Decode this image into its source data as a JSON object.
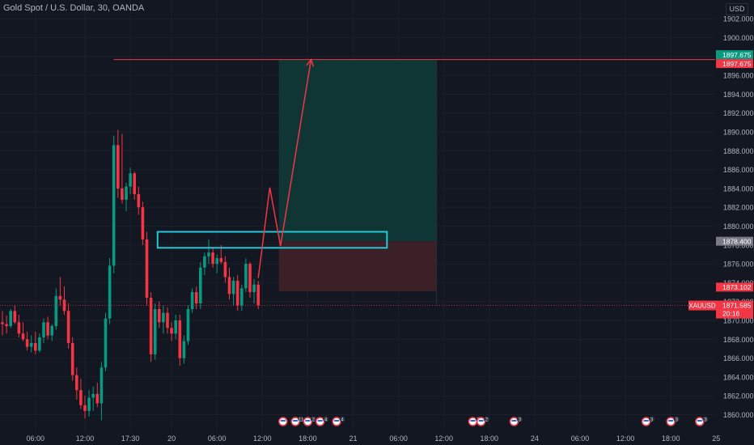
{
  "header": {
    "title": "Gold Spot / U.S. Dollar, 30, OANDA",
    "currency": "USD"
  },
  "price_axis": {
    "ticks": [
      "1902.000",
      "1900.000",
      "1898.000",
      "1896.000",
      "1894.000",
      "1892.000",
      "1890.000",
      "1888.000",
      "1886.000",
      "1884.000",
      "1882.000",
      "1880.000",
      "1878.000",
      "1876.000",
      "1874.000",
      "1872.000",
      "1870.000",
      "1868.000",
      "1866.000",
      "1864.000",
      "1862.000",
      "1860.000"
    ],
    "labels": [
      {
        "name": "target-price-label-upper",
        "text": "1897.675",
        "value": 1897.675,
        "color": "#089981"
      },
      {
        "name": "target-price-label-lower",
        "text": "1897.675",
        "value": 1897.675,
        "color": "#f23645"
      },
      {
        "name": "entry-price-label",
        "text": "1878.400",
        "value": 1878.4,
        "color": "#787b86"
      },
      {
        "name": "stop-price-label",
        "text": "1873.102",
        "value": 1873.102,
        "color": "#f23645"
      },
      {
        "name": "current-price-label",
        "symbol": "XAUUSD",
        "text": "1871.585",
        "countdown": "20:16",
        "value": 1871.585,
        "color": "#f23645"
      }
    ]
  },
  "time_axis": {
    "ticks": [
      {
        "label": "06:00",
        "bar": 8
      },
      {
        "label": "12:00",
        "bar": 20
      },
      {
        "label": "17:30",
        "bar": 31
      },
      {
        "label": "20",
        "bar": 41
      },
      {
        "label": "06:00",
        "bar": 52
      },
      {
        "label": "12:00",
        "bar": 63
      },
      {
        "label": "18:00",
        "bar": 74
      },
      {
        "label": "21",
        "bar": 85
      },
      {
        "label": "06:00",
        "bar": 96
      },
      {
        "label": "12:00",
        "bar": 107
      },
      {
        "label": "18:00",
        "bar": 118
      },
      {
        "label": "24",
        "bar": 129
      },
      {
        "label": "06:00",
        "bar": 140
      },
      {
        "label": "12:00",
        "bar": 151
      },
      {
        "label": "18:00",
        "bar": 162
      },
      {
        "label": "25",
        "bar": 173
      }
    ]
  },
  "events": [
    {
      "bar": 68,
      "count": ""
    },
    {
      "bar": 71,
      "count": "11"
    },
    {
      "bar": 74,
      "count": "2"
    },
    {
      "bar": 77,
      "count": "4"
    },
    {
      "bar": 81,
      "count": "4"
    },
    {
      "bar": 114,
      "count": "3"
    },
    {
      "bar": 116,
      "count": "2"
    },
    {
      "bar": 124,
      "count": "3"
    },
    {
      "bar": 156,
      "count": "3"
    },
    {
      "bar": 162,
      "count": "3"
    },
    {
      "bar": 169,
      "count": "3"
    }
  ],
  "drawings": {
    "target_price": 1897.675,
    "entry_price": 1878.4,
    "stop_price": 1873.102,
    "zone_box": {
      "bar_from": 37.6,
      "bar_to": 93.2,
      "price_from": 1877.7,
      "price_to": 1879.4
    },
    "projection_path": [
      {
        "bar": 62,
        "price": 1874.5
      },
      {
        "bar": 64.8,
        "price": 1884.1
      },
      {
        "bar": 67.4,
        "price": 1877.9
      },
      {
        "bar": 74.8,
        "price": 1897.675
      }
    ],
    "position_bar_from": 67,
    "position_bar_to": 105.2
  },
  "colors": {
    "background": "#131722",
    "up": "#089981",
    "down": "#f23645",
    "target_zone": "#0f3535",
    "stop_zone": "#3b2027",
    "zone_box": "#26c6da",
    "line": "#f23645"
  },
  "chart_data": {
    "type": "candlestick",
    "title": "Gold Spot / U.S. Dollar, 30, OANDA",
    "ylim": [
      1859,
      1903
    ],
    "candles": [
      [
        1869.8,
        1871.0,
        1868.4,
        1869.6
      ],
      [
        1869.6,
        1870.5,
        1868.6,
        1869.4
      ],
      [
        1869.4,
        1871.2,
        1869.2,
        1871.0
      ],
      [
        1871.0,
        1871.6,
        1869.6,
        1869.8
      ],
      [
        1869.8,
        1870.6,
        1868.2,
        1868.6
      ],
      [
        1868.6,
        1869.8,
        1867.8,
        1868.0
      ],
      [
        1868.0,
        1868.8,
        1866.8,
        1867.2
      ],
      [
        1867.2,
        1868.4,
        1866.6,
        1867.6
      ],
      [
        1867.6,
        1868.8,
        1866.4,
        1866.8
      ],
      [
        1866.8,
        1868.6,
        1866.6,
        1868.2
      ],
      [
        1868.2,
        1870.2,
        1867.6,
        1869.8
      ],
      [
        1869.8,
        1870.4,
        1868.0,
        1868.4
      ],
      [
        1868.4,
        1869.6,
        1867.8,
        1869.4
      ],
      [
        1869.4,
        1873.4,
        1869.0,
        1872.6
      ],
      [
        1872.6,
        1874.6,
        1871.6,
        1872.2
      ],
      [
        1872.2,
        1873.6,
        1870.6,
        1871.0
      ],
      [
        1871.0,
        1871.8,
        1867.0,
        1867.6
      ],
      [
        1867.6,
        1868.2,
        1863.6,
        1864.2
      ],
      [
        1864.2,
        1865.0,
        1861.6,
        1862.6
      ],
      [
        1862.6,
        1863.8,
        1860.6,
        1861.0
      ],
      [
        1861.0,
        1862.0,
        1859.6,
        1860.4
      ],
      [
        1860.4,
        1862.6,
        1859.8,
        1861.8
      ],
      [
        1861.8,
        1863.0,
        1860.4,
        1862.2
      ],
      [
        1862.2,
        1863.4,
        1860.8,
        1861.2
      ],
      [
        1861.2,
        1865.6,
        1859.4,
        1865.0
      ],
      [
        1865.0,
        1870.8,
        1864.6,
        1870.2
      ],
      [
        1870.2,
        1876.6,
        1869.6,
        1875.8
      ],
      [
        1875.8,
        1889.6,
        1875.0,
        1888.6
      ],
      [
        1888.6,
        1890.2,
        1883.0,
        1884.0
      ],
      [
        1884.0,
        1889.8,
        1882.4,
        1882.8
      ],
      [
        1882.8,
        1884.6,
        1881.6,
        1884.2
      ],
      [
        1884.2,
        1886.2,
        1883.4,
        1885.6
      ],
      [
        1885.6,
        1885.8,
        1882.8,
        1883.4
      ],
      [
        1883.4,
        1884.2,
        1881.2,
        1882.0
      ],
      [
        1882.0,
        1882.6,
        1878.0,
        1878.6
      ],
      [
        1878.6,
        1879.4,
        1871.6,
        1872.4
      ],
      [
        1872.4,
        1873.0,
        1865.6,
        1866.4
      ],
      [
        1866.4,
        1871.8,
        1865.8,
        1871.2
      ],
      [
        1871.2,
        1872.0,
        1869.2,
        1869.8
      ],
      [
        1869.8,
        1871.6,
        1868.6,
        1870.8
      ],
      [
        1870.8,
        1871.4,
        1868.6,
        1869.2
      ],
      [
        1869.2,
        1869.8,
        1867.8,
        1868.6
      ],
      [
        1868.6,
        1870.6,
        1868.0,
        1870.0
      ],
      [
        1870.0,
        1870.6,
        1865.2,
        1866.0
      ],
      [
        1866.0,
        1868.4,
        1865.4,
        1867.8
      ],
      [
        1867.8,
        1871.6,
        1867.4,
        1871.2
      ],
      [
        1871.2,
        1873.4,
        1870.8,
        1873.0
      ],
      [
        1873.0,
        1873.6,
        1871.2,
        1871.8
      ],
      [
        1871.8,
        1876.2,
        1871.2,
        1875.6
      ],
      [
        1875.6,
        1877.2,
        1874.8,
        1876.8
      ],
      [
        1876.8,
        1878.6,
        1876.0,
        1877.2
      ],
      [
        1877.2,
        1877.8,
        1875.6,
        1876.0
      ],
      [
        1876.0,
        1877.0,
        1875.0,
        1876.6
      ],
      [
        1876.6,
        1878.0,
        1876.0,
        1876.2
      ],
      [
        1876.2,
        1876.8,
        1874.0,
        1874.6
      ],
      [
        1874.6,
        1875.6,
        1872.2,
        1872.8
      ],
      [
        1872.8,
        1874.6,
        1871.6,
        1874.2
      ],
      [
        1874.2,
        1874.8,
        1871.0,
        1871.6
      ],
      [
        1871.6,
        1873.8,
        1871.0,
        1873.4
      ],
      [
        1873.4,
        1876.6,
        1873.0,
        1876.0
      ],
      [
        1876.0,
        1876.2,
        1872.4,
        1873.0
      ],
      [
        1873.0,
        1874.4,
        1871.8,
        1873.8
      ],
      [
        1873.8,
        1874.2,
        1871.2,
        1871.6
      ]
    ]
  }
}
